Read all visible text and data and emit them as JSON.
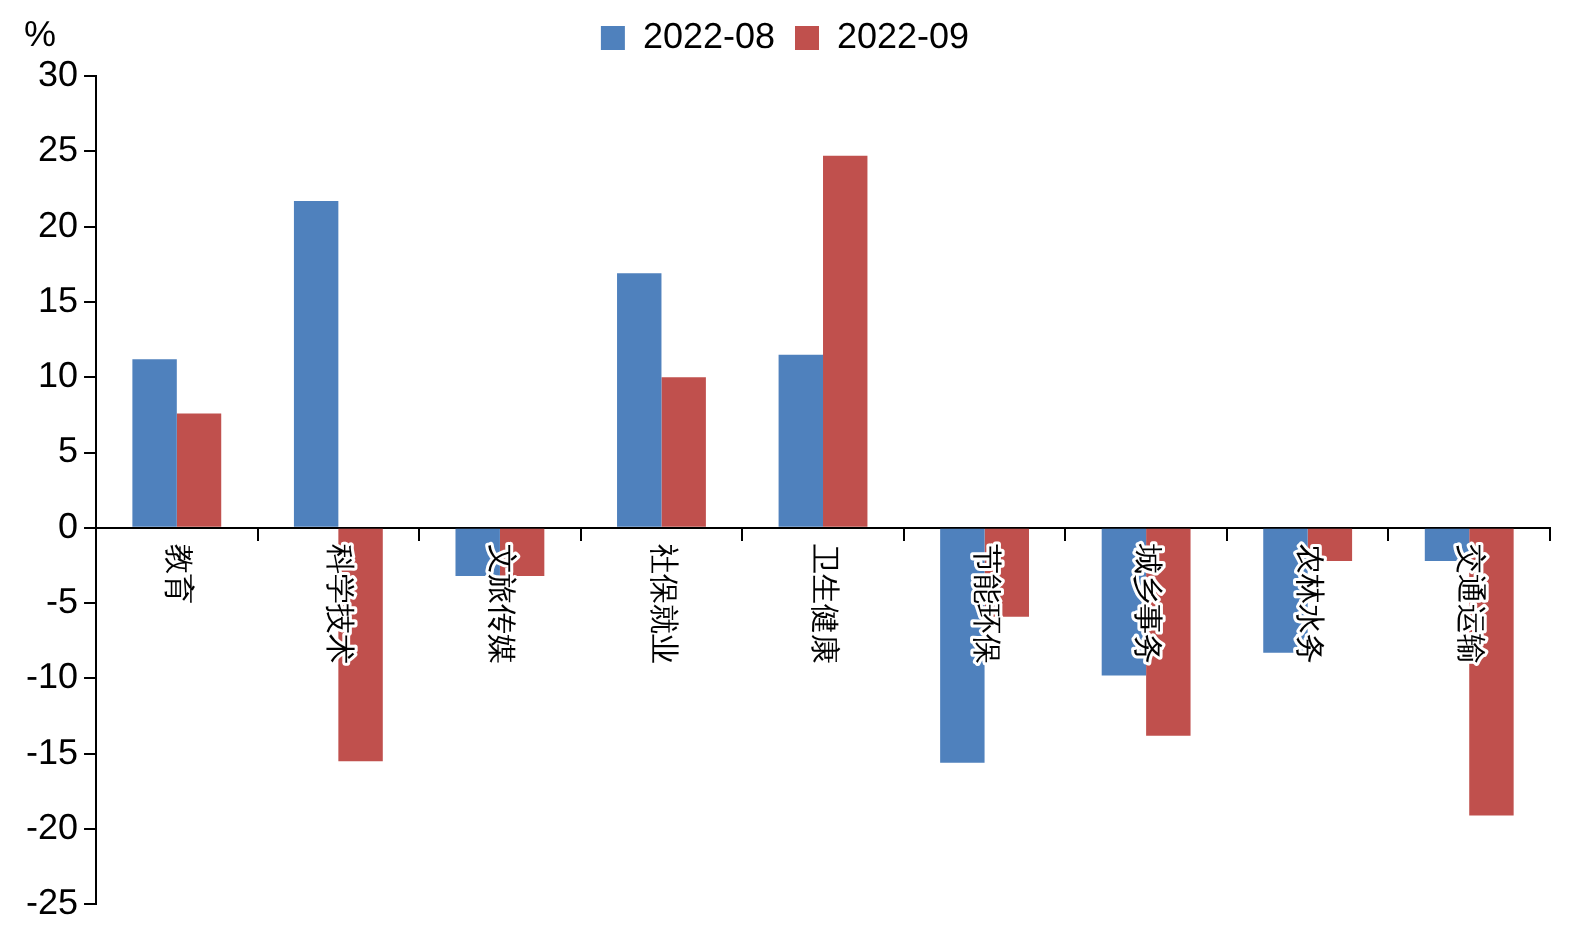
{
  "chart_data": {
    "type": "bar",
    "ylabel": "%",
    "categories": [
      "教育",
      "科学技术",
      "文旅传媒",
      "社保就业",
      "卫生健康",
      "节能环保",
      "城乡事务",
      "农林水务",
      "交通运输"
    ],
    "series": [
      {
        "name": "2022-08",
        "color": "#4f81bd",
        "values": [
          11.2,
          21.7,
          -3.2,
          16.9,
          11.5,
          -15.6,
          -9.8,
          -8.3,
          -2.2
        ]
      },
      {
        "name": "2022-09",
        "color": "#c0504d",
        "values": [
          7.6,
          -15.5,
          -3.2,
          10.0,
          24.7,
          -5.9,
          -13.8,
          -2.2,
          -19.1
        ]
      }
    ],
    "ylim": [
      -25,
      30
    ],
    "yticks": [
      -25,
      -20,
      -15,
      -10,
      -5,
      0,
      5,
      10,
      15,
      20,
      25,
      30
    ],
    "grid": false,
    "legend": "top"
  }
}
